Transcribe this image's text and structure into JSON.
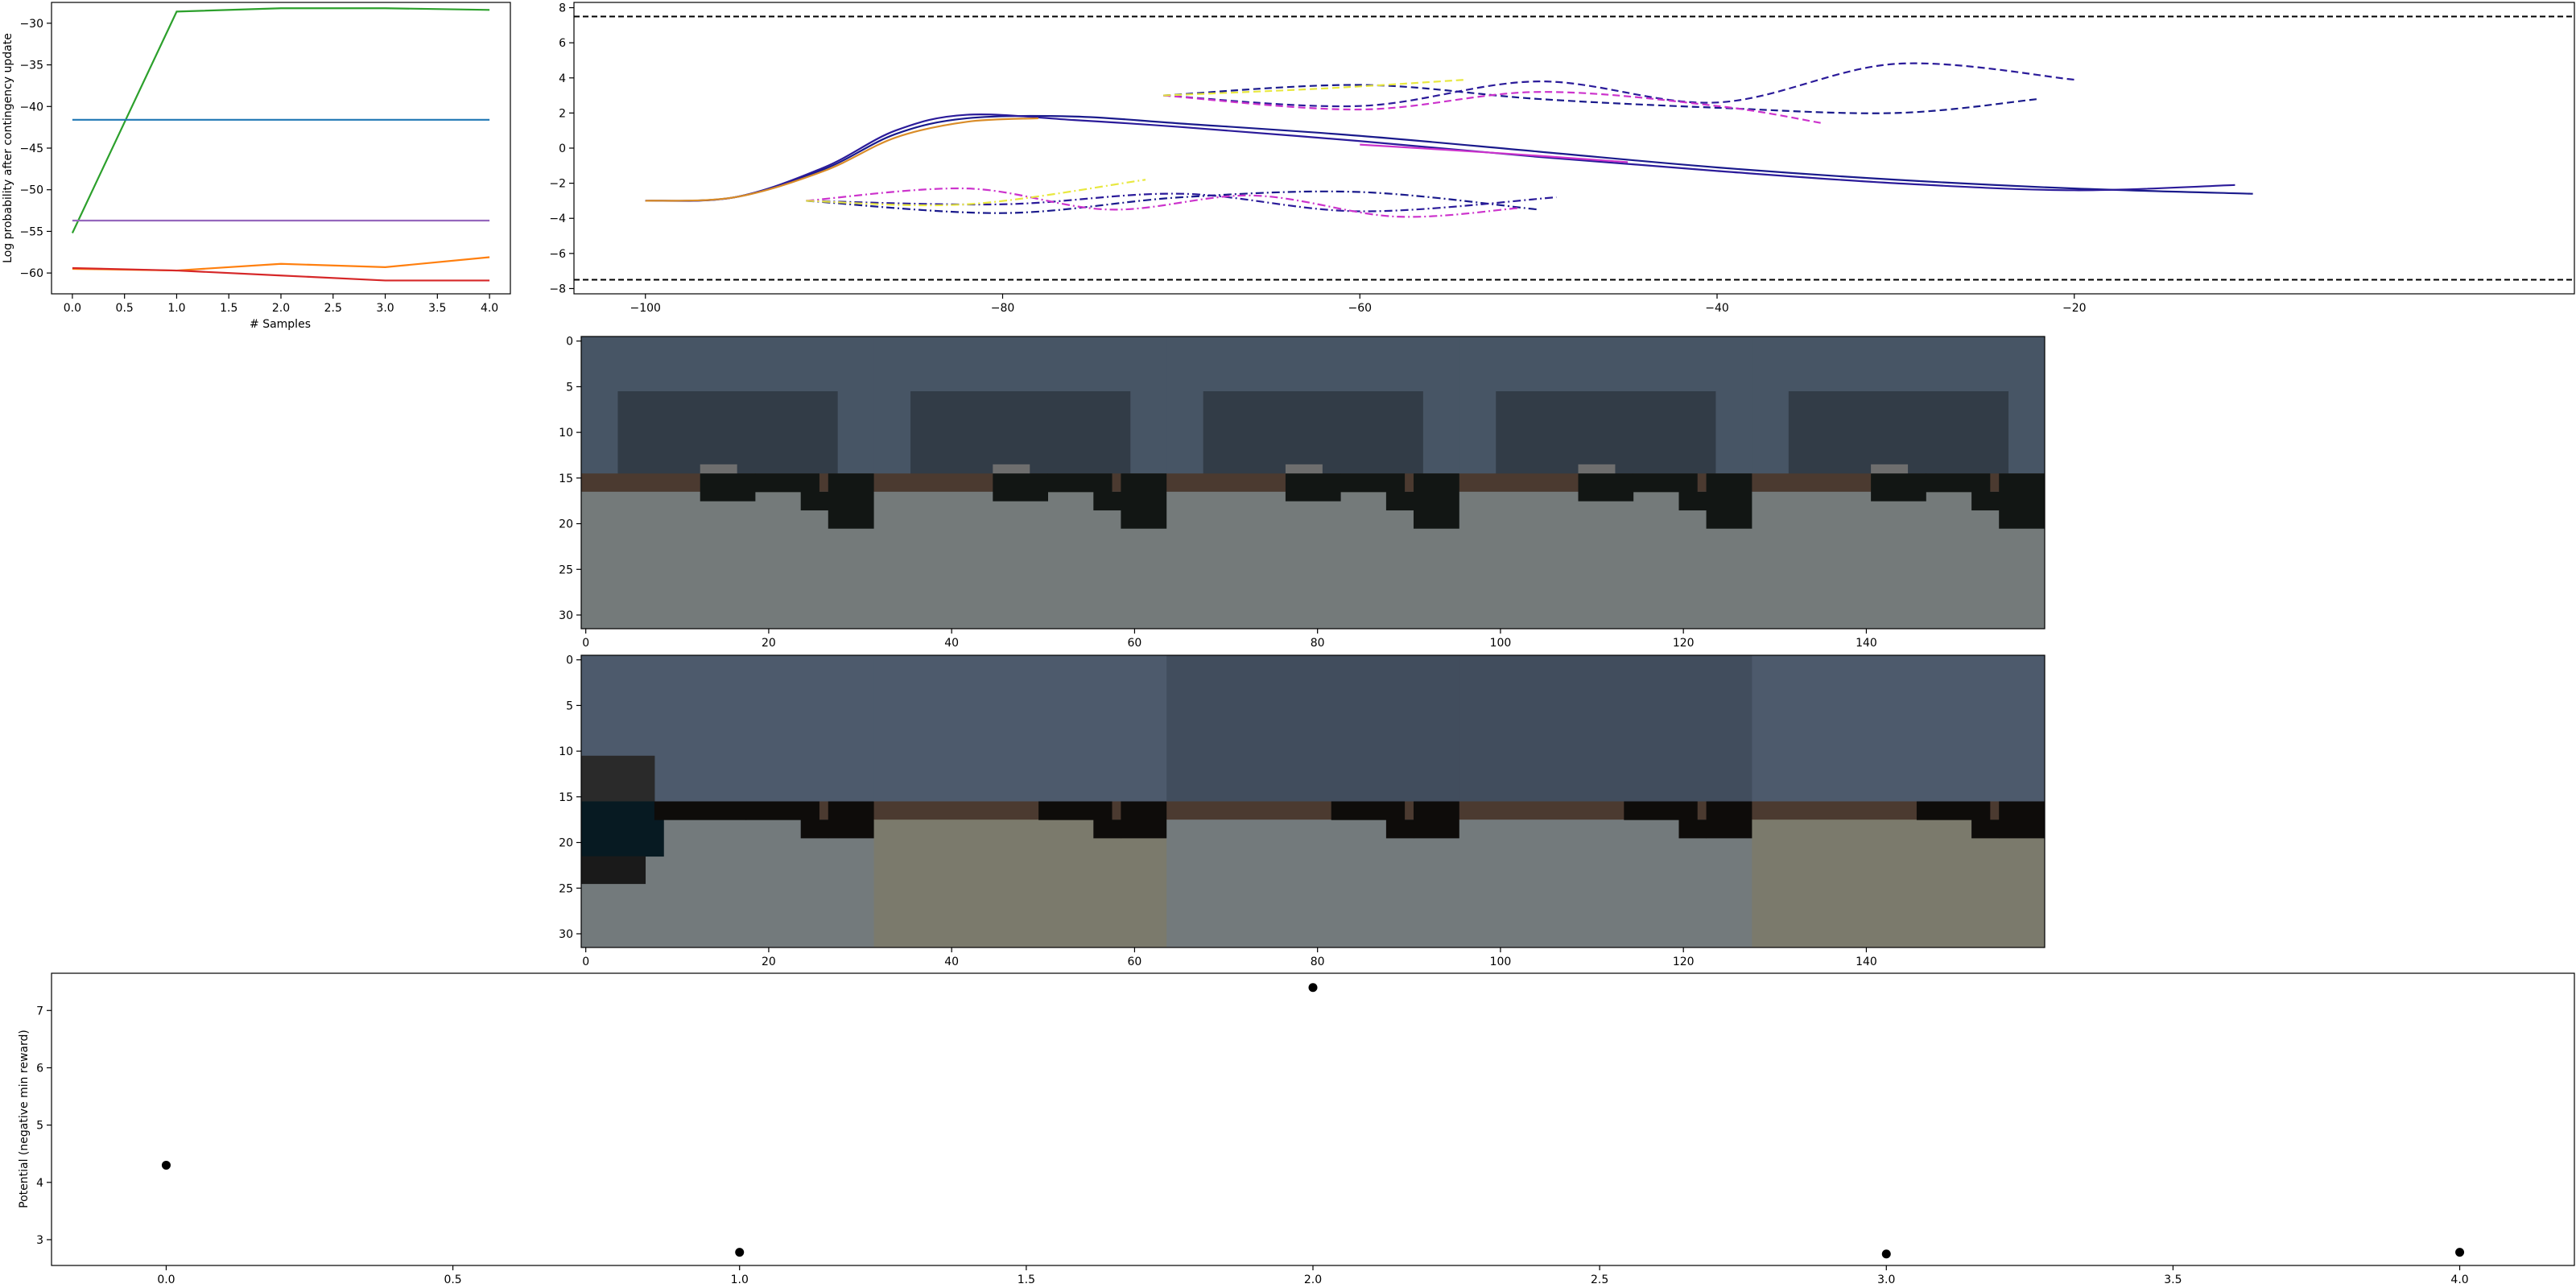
{
  "chart_data": [
    {
      "type": "line",
      "ylabel": "Log probability after contingency update",
      "xlabel": "# Samples",
      "xlim": [
        -0.2,
        4.2
      ],
      "ylim": [
        -62.5,
        -27.5
      ],
      "xticks": [
        "0.0",
        "0.5",
        "1.0",
        "1.5",
        "2.0",
        "2.5",
        "3.0",
        "3.5",
        "4.0"
      ],
      "yticks": [
        "−60",
        "−55",
        "−50",
        "−45",
        "−40",
        "−35",
        "−30"
      ],
      "grid": false,
      "x": [
        0,
        1,
        2,
        3,
        4
      ],
      "series": [
        {
          "color": "#2ca02c",
          "values": [
            -55.2,
            -28.6,
            -28.2,
            -28.2,
            -28.4
          ]
        },
        {
          "color": "#1f77b4",
          "values": [
            -41.6,
            -41.6,
            -41.6,
            -41.6,
            -41.6
          ]
        },
        {
          "color": "#9467bd",
          "values": [
            -53.7,
            -53.7,
            -53.7,
            -53.7,
            -53.7
          ]
        },
        {
          "color": "#ff7f0e",
          "values": [
            -59.5,
            -59.7,
            -58.9,
            -59.3,
            -58.1
          ]
        },
        {
          "color": "#d62728",
          "values": [
            -59.4,
            -59.7,
            -60.3,
            -60.9,
            -60.9
          ]
        }
      ]
    },
    {
      "type": "line",
      "xlim": [
        -104,
        8
      ],
      "ylim": [
        -8.3,
        8.3
      ],
      "xticks": [
        "−100",
        "−80",
        "−60",
        "−40",
        "−20"
      ],
      "yticks": [
        "−8",
        "−6",
        "−4",
        "−2",
        "0",
        "2",
        "4",
        "6",
        "8"
      ],
      "grid": false,
      "boundaries": [
        7.5,
        -7.5
      ],
      "series": [
        {
          "style": "solid",
          "color": "#1a1a8c",
          "x": [
            -100,
            -95,
            -90,
            -86,
            -82,
            -76,
            -70,
            -60,
            -50,
            -40,
            -30,
            -20,
            -10
          ],
          "y": [
            -3,
            -2.8,
            -1.2,
            0.8,
            1.7,
            1.8,
            1.4,
            0.7,
            -0.2,
            -1.1,
            -1.8,
            -2.3,
            -2.6
          ]
        },
        {
          "style": "solid",
          "color": "#2b1b9a",
          "x": [
            -100,
            -95,
            -90,
            -86,
            -82,
            -76,
            -70,
            -60,
            -50,
            -40,
            -30,
            -20,
            -11
          ],
          "y": [
            -3,
            -2.8,
            -1.1,
            1.0,
            1.9,
            1.6,
            1.2,
            0.4,
            -0.5,
            -1.3,
            -2.0,
            -2.4,
            -2.1
          ]
        },
        {
          "style": "solid",
          "color": "#d98c28",
          "x": [
            -100,
            -95,
            -90,
            -86,
            -82,
            -78
          ],
          "y": [
            -3,
            -2.8,
            -1.3,
            0.6,
            1.5,
            1.7
          ]
        },
        {
          "style": "solid",
          "color": "#cc33cc",
          "x": [
            -60,
            -52,
            -45
          ],
          "y": [
            0.2,
            -0.3,
            -0.8
          ]
        },
        {
          "style": "dashed",
          "color": "#1a1a8c",
          "x": [
            -71,
            -60,
            -50,
            -40,
            -30,
            -22
          ],
          "y": [
            3.0,
            3.6,
            2.8,
            2.3,
            2.0,
            2.8
          ]
        },
        {
          "style": "dashed",
          "color": "#2b1b9a",
          "x": [
            -71,
            -60,
            -50,
            -40,
            -30,
            -20
          ],
          "y": [
            3.0,
            2.4,
            3.8,
            2.6,
            4.8,
            3.9
          ]
        },
        {
          "style": "dashed",
          "color": "#cc33cc",
          "x": [
            -71,
            -60,
            -50,
            -40,
            -34
          ],
          "y": [
            3.0,
            2.2,
            3.2,
            2.4,
            1.4
          ]
        },
        {
          "style": "dashed",
          "color": "#e8e840",
          "x": [
            -71,
            -62,
            -54
          ],
          "y": [
            3.0,
            3.4,
            3.9
          ]
        },
        {
          "style": "dashdot",
          "color": "#1a1a8c",
          "x": [
            -91,
            -80,
            -70,
            -60,
            -50
          ],
          "y": [
            -3.0,
            -3.7,
            -2.8,
            -2.5,
            -3.5
          ]
        },
        {
          "style": "dashdot",
          "color": "#2b1b9a",
          "x": [
            -91,
            -80,
            -70,
            -60,
            -49
          ],
          "y": [
            -3.0,
            -3.2,
            -2.6,
            -3.6,
            -2.8
          ]
        },
        {
          "style": "dashdot",
          "color": "#cc33cc",
          "x": [
            -91,
            -82,
            -74,
            -66,
            -58,
            -51
          ],
          "y": [
            -3.0,
            -2.3,
            -3.5,
            -2.7,
            -3.9,
            -3.4
          ]
        },
        {
          "style": "dashdot",
          "color": "#e8e840",
          "x": [
            -91,
            -82,
            -72
          ],
          "y": [
            -3.0,
            -3.2,
            -1.8
          ]
        }
      ]
    },
    {
      "type": "heatmap",
      "xticks": [
        "0",
        "20",
        "40",
        "60",
        "80",
        "100",
        "120",
        "140"
      ],
      "yticks": [
        "0",
        "5",
        "10",
        "15",
        "20",
        "25",
        "30"
      ],
      "xlim": [
        -0.5,
        159.5
      ],
      "ylim": [
        31.5,
        -0.5
      ],
      "content": "camera image panel",
      "colors": {
        "sky": "#475565",
        "sky_dark": "#323c47",
        "ground": "#747a7a",
        "road_edge": "#4b3a30",
        "building": "#121614"
      }
    },
    {
      "type": "heatmap",
      "xticks": [
        "0",
        "20",
        "40",
        "60",
        "80",
        "100",
        "120",
        "140"
      ],
      "yticks": [
        "0",
        "5",
        "10",
        "15",
        "20",
        "25",
        "30"
      ],
      "xlim": [
        -0.5,
        159.5
      ],
      "ylim": [
        31.5,
        -0.5
      ],
      "content": "camera image panel",
      "colors": {
        "sky": "#4d5a6c",
        "sky_dark": "#414d5d",
        "ground": "#7b7a6c",
        "ground_alt": "#737a7c",
        "road_edge": "#4b3a30",
        "building": "#0e0c0a",
        "vehicle": "#071a22"
      }
    },
    {
      "type": "scatter",
      "ylabel": "Potential (negative min reward)",
      "xlim": [
        -0.2,
        4.2
      ],
      "ylim": [
        2.55,
        7.65
      ],
      "xticks": [
        "0.0",
        "0.5",
        "1.0",
        "1.5",
        "2.0",
        "2.5",
        "3.0",
        "3.5",
        "4.0"
      ],
      "yticks": [
        "3",
        "4",
        "5",
        "6",
        "7"
      ],
      "grid": false,
      "x": [
        0,
        1,
        2,
        3,
        4
      ],
      "y": [
        4.3,
        2.78,
        7.4,
        2.75,
        2.78
      ]
    }
  ]
}
